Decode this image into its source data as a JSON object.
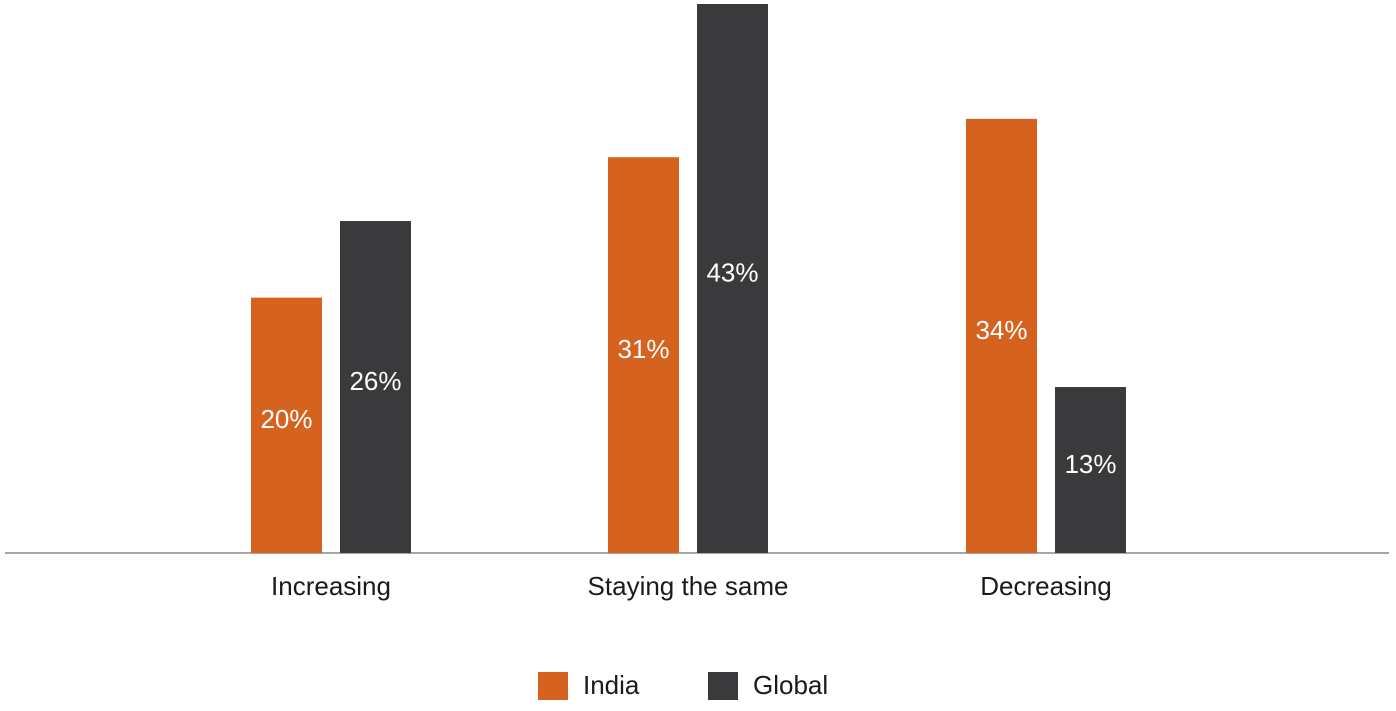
{
  "chart_data": {
    "type": "bar",
    "categories": [
      "Increasing",
      "Staying the same",
      "Decreasing"
    ],
    "series": [
      {
        "name": "India",
        "color": "#d5631f",
        "values": [
          20,
          31,
          34
        ],
        "value_labels": [
          "20%",
          "31%",
          "34%"
        ]
      },
      {
        "name": "Global",
        "color": "#3a3a3c",
        "values": [
          26,
          43,
          13
        ],
        "value_labels": [
          "26%",
          "43%",
          "13%"
        ]
      }
    ]
  }
}
